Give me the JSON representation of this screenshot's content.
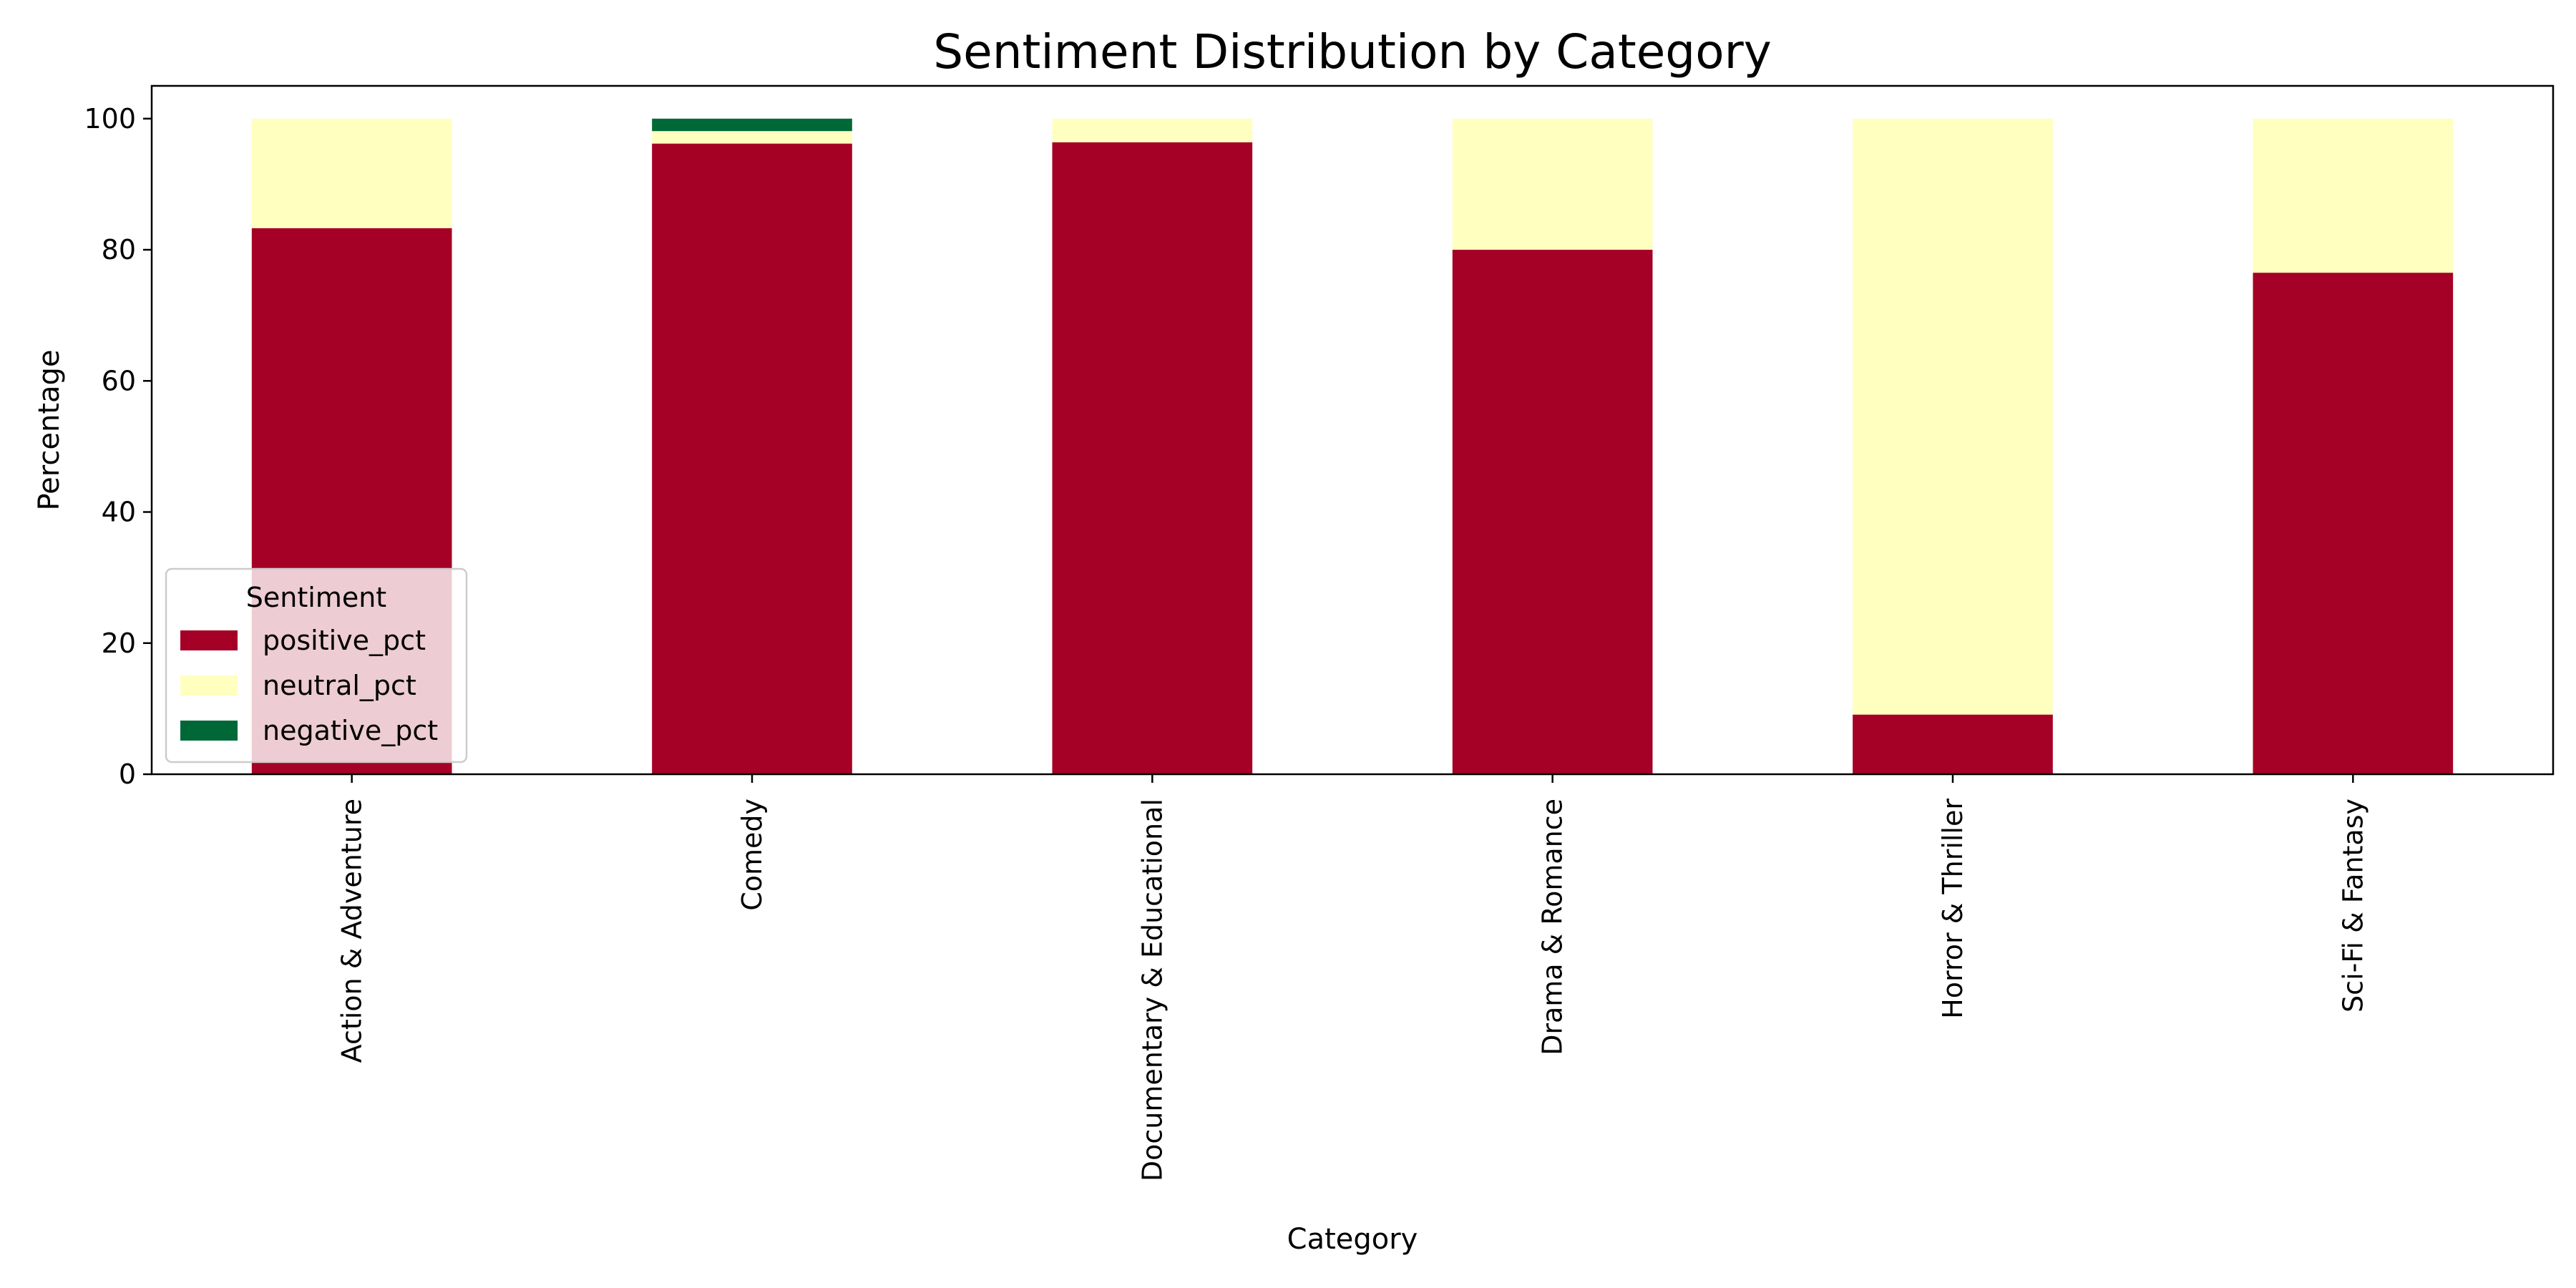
{
  "chart_data": {
    "type": "bar",
    "stacked": true,
    "title": "Sentiment Distribution by Category",
    "xlabel": "Category",
    "ylabel": "Percentage",
    "categories": [
      "Action & Adventure",
      "Comedy",
      "Documentary & Educational",
      "Drama & Romance",
      "Horror & Thriller",
      "Sci-Fi & Fantasy"
    ],
    "series": [
      {
        "name": "positive_pct",
        "color": "#a50026",
        "values": [
          83.3,
          96.2,
          96.4,
          80.0,
          9.1,
          76.5
        ]
      },
      {
        "name": "neutral_pct",
        "color": "#ffffbf",
        "values": [
          16.7,
          1.9,
          3.6,
          20.0,
          90.9,
          23.5
        ]
      },
      {
        "name": "negative_pct",
        "color": "#006837",
        "values": [
          0.0,
          1.9,
          0.0,
          0.0,
          0.0,
          0.0
        ]
      }
    ],
    "ylim": [
      0,
      105
    ],
    "yticks": [
      0,
      20,
      40,
      60,
      80,
      100
    ],
    "grid": false,
    "legend": {
      "title": "Sentiment",
      "placement": "lower-left"
    }
  }
}
